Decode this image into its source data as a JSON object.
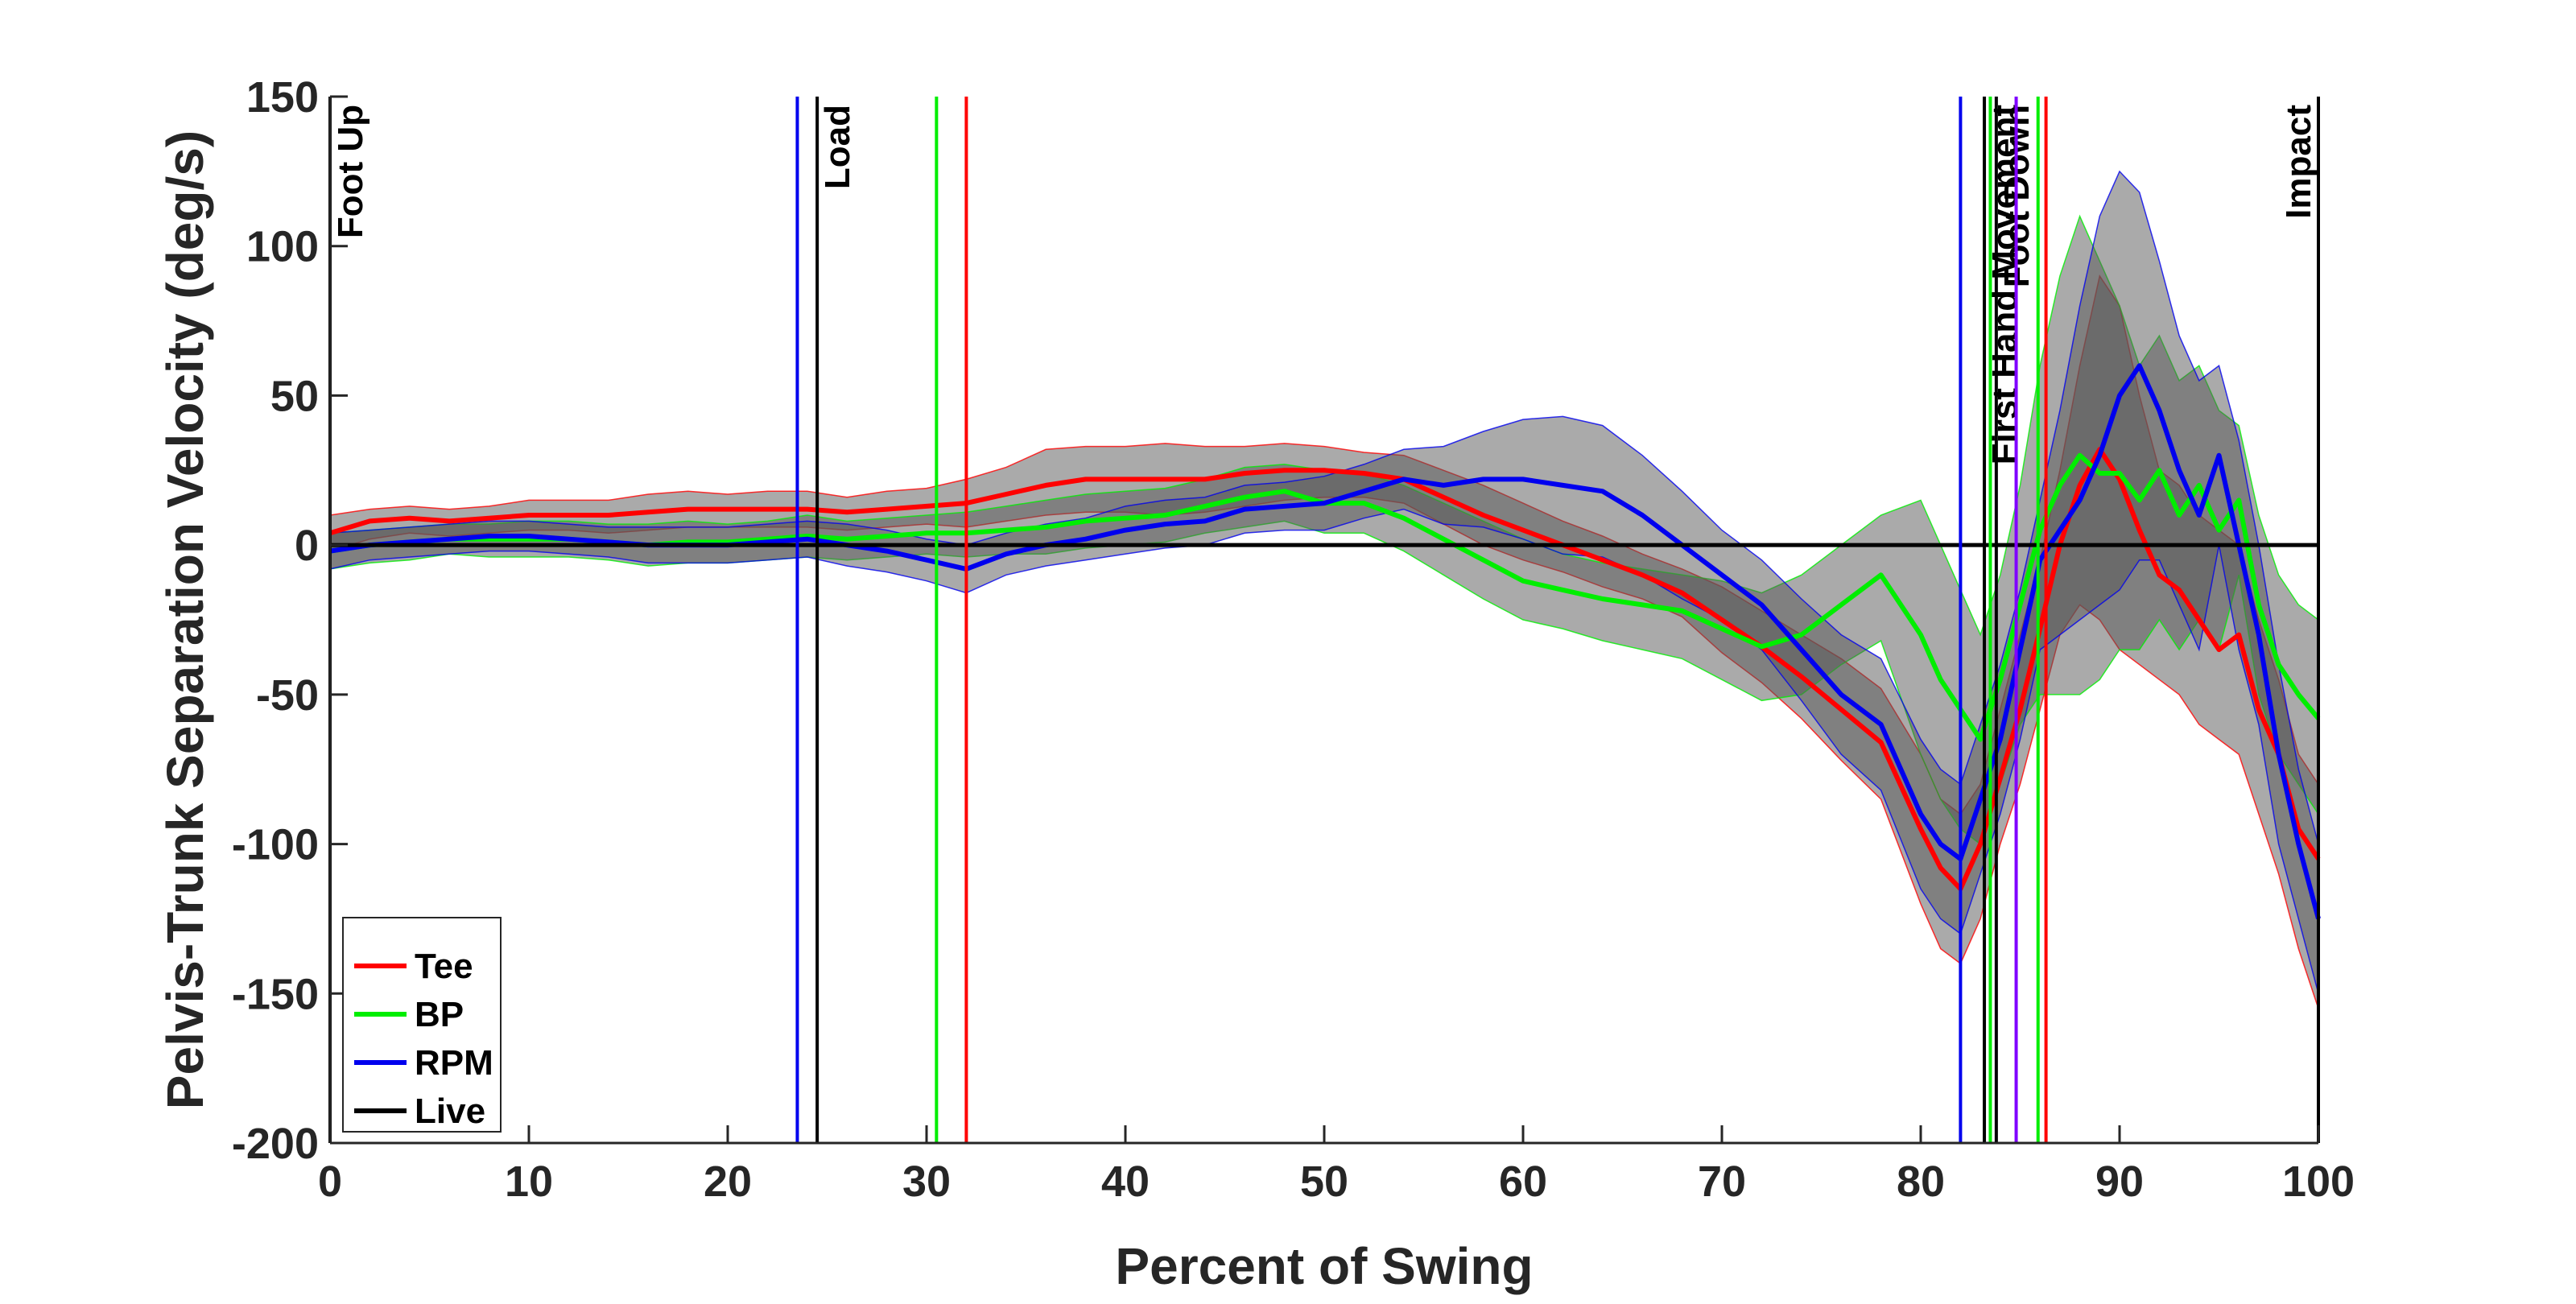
{
  "chart_data": {
    "type": "line",
    "xlabel": "Percent of Swing",
    "ylabel": "Pelvis-Trunk Separation Velocity (deg/s)",
    "xlim": [
      0,
      100
    ],
    "ylim": [
      -200,
      150
    ],
    "xticks": [
      0,
      10,
      20,
      30,
      40,
      50,
      60,
      70,
      80,
      90,
      100
    ],
    "yticks": [
      -200,
      -150,
      -100,
      -50,
      0,
      50,
      100,
      150
    ],
    "grid": false,
    "legend_position": "bottom-left",
    "legend": [
      "Tee",
      "BP",
      "RPM",
      "Live"
    ],
    "colors": {
      "Tee": "#ff0000",
      "BP": "#00ee00",
      "RPM": "#0000ee",
      "Live": "#000000",
      "band": "#555555"
    },
    "x": [
      0,
      2,
      4,
      6,
      8,
      10,
      12,
      14,
      16,
      18,
      20,
      22,
      24,
      26,
      28,
      30,
      32,
      34,
      36,
      38,
      40,
      42,
      44,
      46,
      48,
      50,
      52,
      54,
      56,
      58,
      60,
      62,
      64,
      66,
      68,
      70,
      72,
      74,
      76,
      78,
      80,
      81,
      82,
      83,
      84,
      85,
      86,
      87,
      88,
      89,
      90,
      91,
      92,
      93,
      94,
      95,
      96,
      97,
      98,
      99,
      100
    ],
    "series": [
      {
        "name": "Tee",
        "values": [
          4,
          8,
          9,
          8,
          9,
          10,
          10,
          10,
          11,
          12,
          12,
          12,
          12,
          11,
          12,
          13,
          14,
          17,
          20,
          22,
          22,
          22,
          22,
          24,
          25,
          25,
          24,
          22,
          16,
          10,
          5,
          0,
          -5,
          -10,
          -16,
          -25,
          -34,
          -44,
          -55,
          -66,
          -95,
          -108,
          -115,
          -100,
          -78,
          -55,
          -28,
          0,
          20,
          32,
          22,
          5,
          -10,
          -15,
          -25,
          -35,
          -30,
          -55,
          -70,
          -95,
          -105
        ],
        "upper": [
          10,
          12,
          13,
          12,
          13,
          15,
          15,
          15,
          17,
          18,
          17,
          18,
          18,
          16,
          18,
          19,
          22,
          26,
          32,
          33,
          33,
          34,
          33,
          33,
          34,
          33,
          31,
          30,
          25,
          20,
          14,
          8,
          3,
          -3,
          -8,
          -14,
          -22,
          -30,
          -38,
          -48,
          -70,
          -85,
          -90,
          -80,
          -55,
          -30,
          -5,
          25,
          60,
          90,
          80,
          50,
          25,
          20,
          10,
          5,
          0,
          -25,
          -45,
          -70,
          -80
        ],
        "lower": [
          -2,
          2,
          4,
          3,
          4,
          5,
          5,
          4,
          5,
          6,
          6,
          6,
          6,
          5,
          6,
          7,
          6,
          8,
          10,
          11,
          11,
          10,
          11,
          13,
          15,
          16,
          16,
          14,
          7,
          0,
          -5,
          -9,
          -14,
          -18,
          -24,
          -36,
          -46,
          -58,
          -72,
          -85,
          -120,
          -135,
          -140,
          -125,
          -100,
          -80,
          -55,
          -30,
          -20,
          -25,
          -35,
          -40,
          -45,
          -50,
          -60,
          -65,
          -70,
          -90,
          -110,
          -135,
          -155
        ]
      },
      {
        "name": "BP",
        "values": [
          -2,
          0,
          1,
          2,
          2,
          2,
          2,
          1,
          0,
          1,
          1,
          2,
          3,
          2,
          3,
          4,
          4,
          5,
          6,
          8,
          9,
          10,
          13,
          16,
          18,
          14,
          14,
          9,
          2,
          -5,
          -12,
          -15,
          -18,
          -20,
          -22,
          -28,
          -34,
          -30,
          -20,
          -10,
          -30,
          -45,
          -55,
          -65,
          -45,
          -20,
          5,
          20,
          30,
          24,
          24,
          15,
          25,
          10,
          20,
          5,
          15,
          -20,
          -40,
          -50,
          -58
        ],
        "upper": [
          4,
          5,
          6,
          7,
          7,
          8,
          8,
          7,
          7,
          8,
          7,
          8,
          10,
          8,
          9,
          10,
          11,
          13,
          15,
          17,
          18,
          19,
          22,
          26,
          27,
          25,
          24,
          20,
          14,
          8,
          2,
          -3,
          -6,
          -8,
          -10,
          -12,
          -16,
          -10,
          0,
          10,
          15,
          0,
          -15,
          -30,
          -10,
          20,
          60,
          90,
          110,
          95,
          80,
          60,
          70,
          55,
          60,
          45,
          40,
          10,
          -10,
          -20,
          -25
        ],
        "lower": [
          -8,
          -6,
          -5,
          -3,
          -4,
          -4,
          -4,
          -5,
          -7,
          -6,
          -6,
          -5,
          -4,
          -5,
          -4,
          -3,
          -4,
          -3,
          -3,
          -1,
          0,
          1,
          4,
          6,
          8,
          4,
          4,
          -2,
          -10,
          -18,
          -25,
          -28,
          -32,
          -35,
          -38,
          -45,
          -52,
          -50,
          -40,
          -32,
          -70,
          -85,
          -95,
          -100,
          -80,
          -60,
          -50,
          -50,
          -50,
          -45,
          -35,
          -35,
          -25,
          -35,
          -25,
          -35,
          -10,
          -50,
          -70,
          -80,
          -90
        ]
      },
      {
        "name": "RPM",
        "values": [
          -2,
          0,
          1,
          2,
          3,
          3,
          2,
          1,
          0,
          0,
          0,
          1,
          2,
          0,
          -2,
          -5,
          -8,
          -3,
          0,
          2,
          5,
          7,
          8,
          12,
          13,
          14,
          18,
          22,
          20,
          22,
          22,
          20,
          18,
          10,
          0,
          -10,
          -20,
          -35,
          -50,
          -60,
          -90,
          -100,
          -105,
          -85,
          -65,
          -35,
          -5,
          5,
          15,
          30,
          50,
          60,
          45,
          25,
          10,
          30,
          0,
          -30,
          -70,
          -100,
          -125
        ],
        "upper": [
          4,
          5,
          6,
          7,
          8,
          8,
          7,
          6,
          6,
          6,
          6,
          7,
          8,
          7,
          5,
          2,
          0,
          4,
          7,
          9,
          13,
          15,
          16,
          20,
          21,
          23,
          27,
          32,
          33,
          38,
          42,
          43,
          40,
          30,
          18,
          5,
          -5,
          -18,
          -30,
          -38,
          -65,
          -75,
          -80,
          -60,
          -40,
          -15,
          15,
          45,
          80,
          110,
          125,
          118,
          95,
          70,
          55,
          60,
          35,
          0,
          -40,
          -75,
          -100
        ],
        "lower": [
          -8,
          -5,
          -4,
          -3,
          -2,
          -2,
          -3,
          -4,
          -6,
          -6,
          -6,
          -5,
          -4,
          -7,
          -9,
          -12,
          -16,
          -10,
          -7,
          -5,
          -3,
          -1,
          0,
          4,
          5,
          5,
          9,
          12,
          7,
          6,
          2,
          -3,
          -4,
          -10,
          -18,
          -25,
          -35,
          -52,
          -70,
          -82,
          -115,
          -125,
          -130,
          -110,
          -90,
          -65,
          -35,
          -30,
          -25,
          -20,
          -15,
          -5,
          -5,
          -20,
          -35,
          0,
          -35,
          -60,
          -100,
          -125,
          -150
        ]
      },
      {
        "name": "Live",
        "values": [
          0,
          0,
          0,
          0,
          0,
          0,
          0,
          0,
          0,
          0,
          0,
          0,
          0,
          0,
          0,
          0,
          0,
          0,
          0,
          0,
          0,
          0,
          0,
          0,
          0,
          0,
          0,
          0,
          0,
          0,
          0,
          0,
          0,
          0,
          0,
          0,
          0,
          0,
          0,
          0,
          0,
          0,
          0,
          0,
          0,
          0,
          0,
          0,
          0,
          0,
          0,
          0,
          0,
          0,
          0,
          0,
          0,
          0,
          0,
          0,
          0
        ]
      }
    ],
    "events": [
      {
        "x": 0,
        "color": "#000000",
        "label": "Foot Up"
      },
      {
        "x": 23.5,
        "color": "#0000ee",
        "label": ""
      },
      {
        "x": 24.5,
        "color": "#000000",
        "label": "Load"
      },
      {
        "x": 30.5,
        "color": "#00ee00",
        "label": ""
      },
      {
        "x": 32,
        "color": "#ff0000",
        "label": ""
      },
      {
        "x": 82,
        "color": "#0000ee",
        "label": ""
      },
      {
        "x": 83.2,
        "color": "#000000",
        "label": "First Hand Movement"
      },
      {
        "x": 83.5,
        "color": "#00ee00",
        "label": ""
      },
      {
        "x": 83.8,
        "color": "#000000",
        "label": "Foot Down"
      },
      {
        "x": 84.8,
        "color": "#7f00ff",
        "label": ""
      },
      {
        "x": 85.9,
        "color": "#00ee00",
        "label": ""
      },
      {
        "x": 86.3,
        "color": "#ff0000",
        "label": ""
      },
      {
        "x": 100,
        "color": "#000000",
        "label": "Impact"
      }
    ]
  }
}
